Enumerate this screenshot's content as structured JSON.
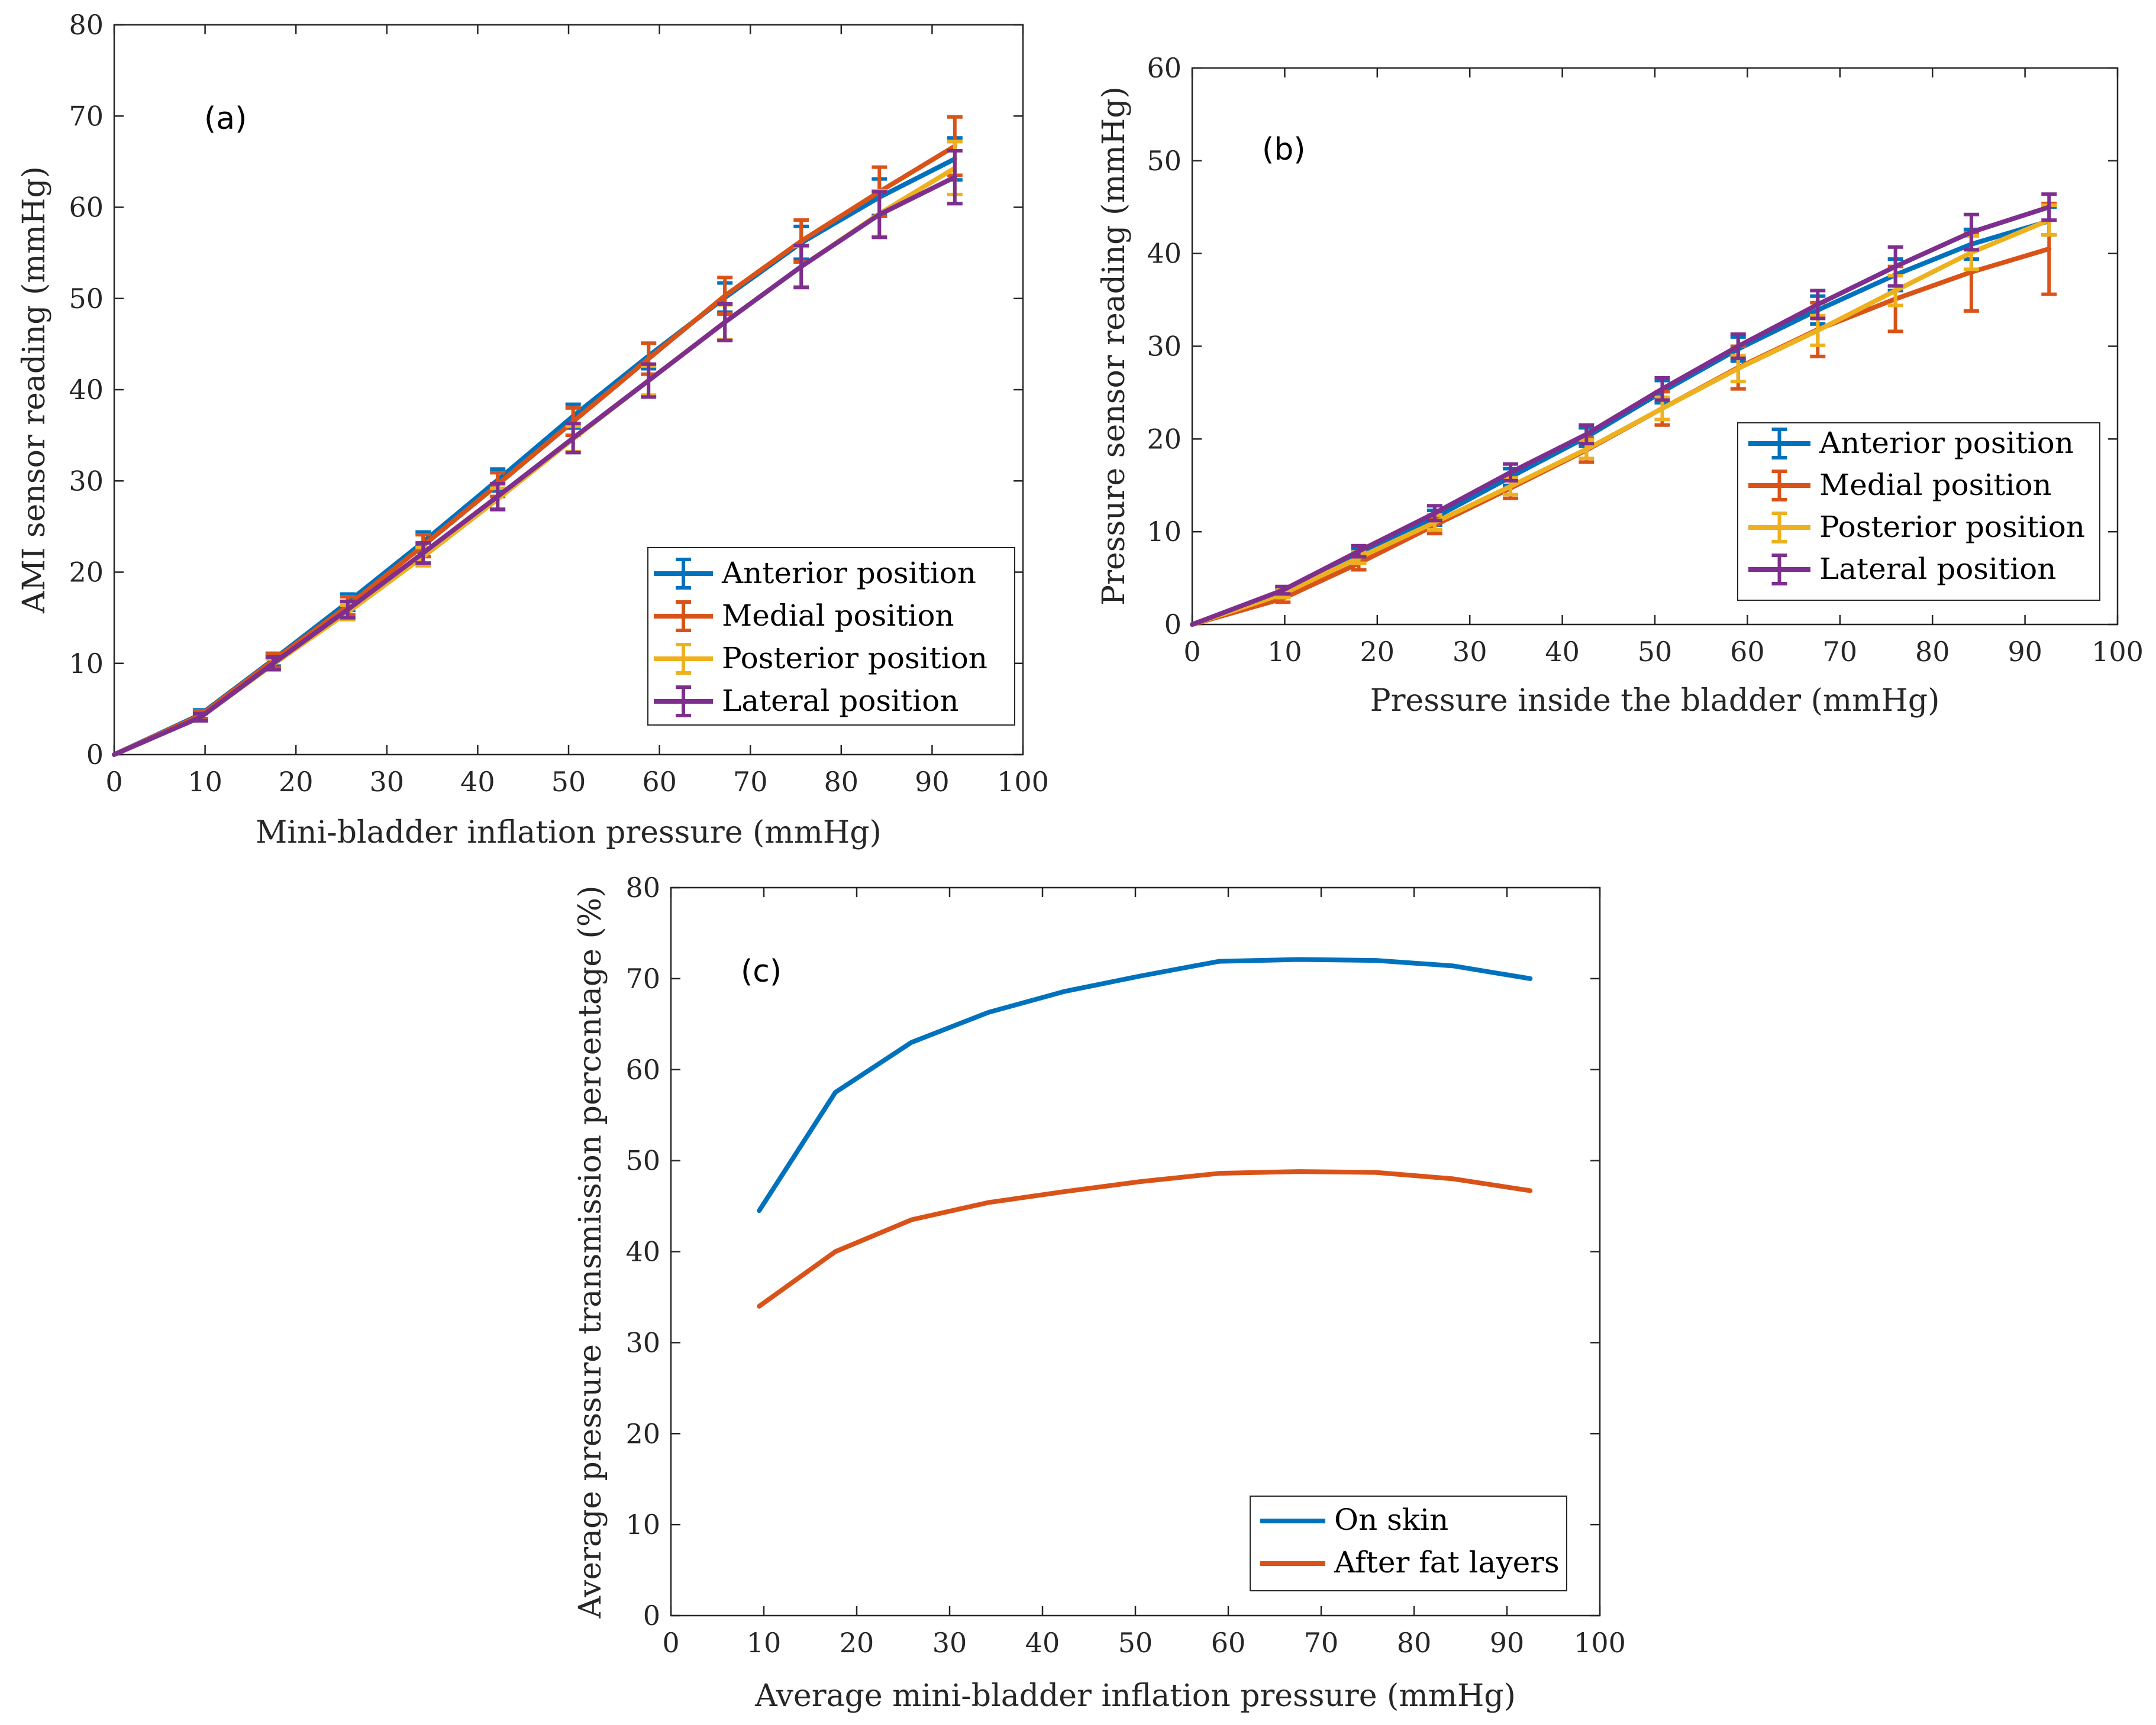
{
  "chart_data": [
    {
      "panel": "a",
      "type": "line",
      "title": "",
      "annotation": "(a)",
      "xlabel": "Mini-bladder inflation pressure (mmHg)",
      "ylabel": "AMI sensor reading (mmHg)",
      "xlim": [
        0,
        100
      ],
      "ylim": [
        0,
        80
      ],
      "xticks": [
        0,
        10,
        20,
        30,
        40,
        50,
        60,
        70,
        80,
        90,
        100
      ],
      "yticks": [
        0,
        10,
        20,
        30,
        40,
        50,
        60,
        70,
        80
      ],
      "legend_position": "bottom-right",
      "error_bars": true,
      "x": [
        0,
        9.5,
        17.5,
        25.7,
        34,
        42.2,
        50.5,
        58.8,
        67.2,
        75.6,
        84.2,
        92.5
      ],
      "series": [
        {
          "name": "Anterior position",
          "color": "#0072BD",
          "values": [
            0,
            4.4,
            10.4,
            16.7,
            23.3,
            30.1,
            37.1,
            43.7,
            50.1,
            56.1,
            61.1,
            65.3
          ],
          "errors": [
            0,
            0.5,
            0.7,
            0.9,
            1.1,
            1.2,
            1.3,
            1.4,
            1.6,
            1.8,
            2.0,
            2.3
          ]
        },
        {
          "name": "Medial position",
          "color": "#D95319",
          "values": [
            0,
            4.3,
            10.3,
            16.3,
            22.9,
            29.6,
            36.5,
            43.4,
            50.3,
            56.3,
            61.7,
            66.7
          ],
          "errors": [
            0,
            0.5,
            0.8,
            1.0,
            1.2,
            1.3,
            1.5,
            1.7,
            2.0,
            2.3,
            2.7,
            3.2
          ]
        },
        {
          "name": "Posterior position",
          "color": "#EDB120",
          "values": [
            0,
            4.1,
            9.9,
            15.6,
            21.7,
            28.0,
            34.6,
            41.0,
            47.4,
            53.5,
            59.3,
            64.3
          ],
          "errors": [
            0,
            0.4,
            0.6,
            0.8,
            1.0,
            1.2,
            1.4,
            1.6,
            1.9,
            2.2,
            2.5,
            2.9
          ]
        },
        {
          "name": "Lateral position",
          "color": "#7E2F8E",
          "values": [
            0,
            4.1,
            10.0,
            15.9,
            22.1,
            28.3,
            34.7,
            41.0,
            47.4,
            53.5,
            59.2,
            63.3
          ],
          "errors": [
            0,
            0.4,
            0.7,
            0.9,
            1.1,
            1.4,
            1.6,
            1.8,
            2.0,
            2.3,
            2.5,
            2.9
          ]
        }
      ]
    },
    {
      "panel": "b",
      "type": "line",
      "title": "",
      "annotation": "(b)",
      "xlabel": "Pressure inside the bladder (mmHg)",
      "ylabel": "Pressure sensor reading (mmHg)",
      "xlim": [
        0,
        100
      ],
      "ylim": [
        0,
        60
      ],
      "xticks": [
        0,
        10,
        20,
        30,
        40,
        50,
        60,
        70,
        80,
        90,
        100
      ],
      "yticks": [
        0,
        10,
        20,
        30,
        40,
        50,
        60
      ],
      "legend_position": "bottom-right",
      "error_bars": true,
      "x": [
        0,
        9.8,
        18,
        26.2,
        34.4,
        42.6,
        50.8,
        59,
        67.6,
        76,
        84.2,
        92.6
      ],
      "series": [
        {
          "name": "Anterior position",
          "color": "#0072BD",
          "values": [
            0,
            3.5,
            7.6,
            11.5,
            15.9,
            20.2,
            25.1,
            29.7,
            33.9,
            37.7,
            41.0,
            43.5
          ],
          "errors": [
            0,
            0.4,
            0.6,
            0.8,
            0.9,
            1.0,
            1.2,
            1.3,
            1.5,
            1.7,
            1.6,
            1.5
          ]
        },
        {
          "name": "Medial position",
          "color": "#D95319",
          "values": [
            0,
            2.8,
            6.6,
            10.7,
            14.7,
            18.8,
            23.3,
            27.7,
            31.8,
            35.1,
            38.0,
            40.5
          ],
          "errors": [
            0,
            0.4,
            0.7,
            0.9,
            1.1,
            1.3,
            1.8,
            2.3,
            2.9,
            3.5,
            4.2,
            4.9
          ]
        },
        {
          "name": "Posterior position",
          "color": "#EDB120",
          "values": [
            0,
            3.3,
            7.2,
            11.0,
            14.9,
            18.9,
            23.3,
            27.6,
            31.7,
            36.0,
            40.1,
            43.6
          ],
          "errors": [
            0,
            0.4,
            0.6,
            0.8,
            0.9,
            1.0,
            1.2,
            1.4,
            1.6,
            1.6,
            1.8,
            1.6
          ]
        },
        {
          "name": "Lateral position",
          "color": "#7E2F8E",
          "values": [
            0,
            3.7,
            7.9,
            12.0,
            16.4,
            20.5,
            25.4,
            30.0,
            34.5,
            38.6,
            42.3,
            45.0
          ],
          "errors": [
            0,
            0.4,
            0.6,
            0.8,
            0.9,
            1.0,
            1.2,
            1.3,
            1.5,
            2.1,
            1.9,
            1.4
          ]
        }
      ]
    },
    {
      "panel": "c",
      "type": "line",
      "title": "",
      "annotation": "(c)",
      "xlabel": "Average mini-bladder inflation pressure (mmHg)",
      "ylabel": "Average pressure transmission percentage (%)",
      "xlim": [
        0,
        100
      ],
      "ylim": [
        0,
        80
      ],
      "xticks": [
        0,
        10,
        20,
        30,
        40,
        50,
        60,
        70,
        80,
        90,
        100
      ],
      "yticks": [
        0,
        10,
        20,
        30,
        40,
        50,
        60,
        70,
        80
      ],
      "legend_position": "bottom-right",
      "error_bars": false,
      "x": [
        9.5,
        17.7,
        25.9,
        34.2,
        42.4,
        50.6,
        59.0,
        67.6,
        75.9,
        84.2,
        92.5
      ],
      "series": [
        {
          "name": "On skin",
          "color": "#0072BD",
          "values": [
            44.5,
            57.5,
            63.0,
            66.3,
            68.6,
            70.3,
            71.9,
            72.1,
            72.0,
            71.4,
            70.0
          ]
        },
        {
          "name": "After fat layers",
          "color": "#D95319",
          "values": [
            34.0,
            40.0,
            43.5,
            45.4,
            46.6,
            47.7,
            48.6,
            48.8,
            48.7,
            48.0,
            46.7
          ]
        }
      ]
    }
  ]
}
